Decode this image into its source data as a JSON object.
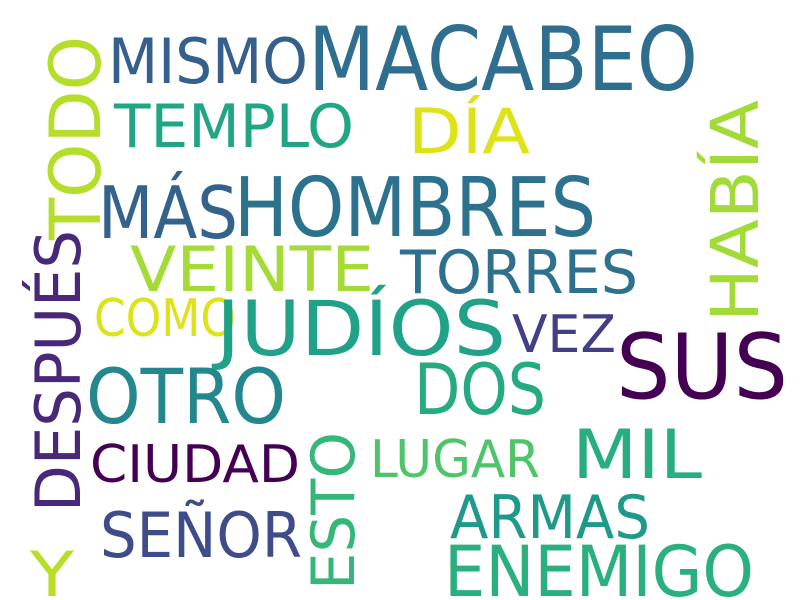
{
  "words": [
    {
      "text": "MACABEO",
      "color": "#2f6e8e"
    },
    {
      "text": "MISMO",
      "color": "#355f8d"
    },
    {
      "text": "TODO",
      "color": "#b5de2b"
    },
    {
      "text": "TEMPLO",
      "color": "#21a685"
    },
    {
      "text": "DÍA",
      "color": "#dde318"
    },
    {
      "text": "HABÍA",
      "color": "#a2da37"
    },
    {
      "text": "MÁS",
      "color": "#33638d"
    },
    {
      "text": "HOMBRES",
      "color": "#2c728e"
    },
    {
      "text": "VEINTE",
      "color": "#a5db36"
    },
    {
      "text": "TORRES",
      "color": "#2d718e"
    },
    {
      "text": "DESPUÉS",
      "color": "#482979"
    },
    {
      "text": "COMO",
      "color": "#dde318"
    },
    {
      "text": "JUDÍOS",
      "color": "#1fa287"
    },
    {
      "text": "VEZ",
      "color": "#433e85"
    },
    {
      "text": "SUS",
      "color": "#440154"
    },
    {
      "text": "OTRO",
      "color": "#24878e"
    },
    {
      "text": "DOS",
      "color": "#25ab82"
    },
    {
      "text": "CIUDAD",
      "color": "#440154"
    },
    {
      "text": "ESTO",
      "color": "#35b779"
    },
    {
      "text": "LUGAR",
      "color": "#50c46a"
    },
    {
      "text": "MIL",
      "color": "#27ad81"
    },
    {
      "text": "ARMAS",
      "color": "#1f9a8a"
    },
    {
      "text": "SEÑOR",
      "color": "#3e4c8a"
    },
    {
      "text": "Y",
      "color": "#b8de29"
    },
    {
      "text": "ENEMIGO",
      "color": "#2ab07f"
    }
  ]
}
